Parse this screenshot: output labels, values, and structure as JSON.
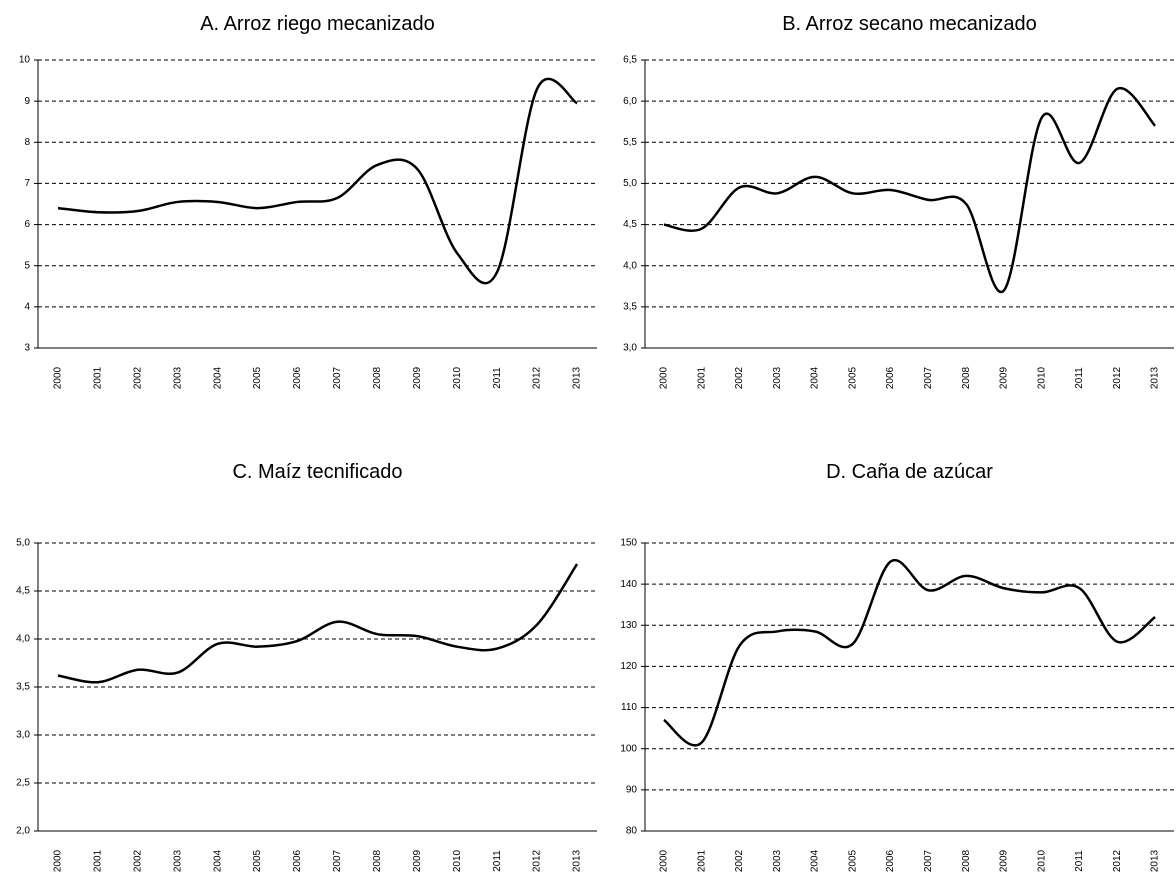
{
  "chart_data": [
    {
      "type": "line",
      "title": "A. Arroz riego mecanizado",
      "categories": [
        "2000",
        "2001",
        "2002",
        "2003",
        "2004",
        "2005",
        "2006",
        "2007",
        "2008",
        "2009",
        "2010",
        "2011",
        "2012",
        "2013"
      ],
      "values": [
        6.4,
        6.3,
        6.33,
        6.55,
        6.55,
        6.4,
        6.55,
        6.65,
        7.45,
        7.35,
        5.3,
        4.85,
        9.3,
        8.95
      ],
      "color": "#000000",
      "ylim": [
        3,
        10
      ],
      "yticks": [
        3,
        4,
        5,
        6,
        7,
        8,
        9,
        10
      ],
      "grid": true
    },
    {
      "type": "line",
      "title": "B. Arroz secano mecanizado",
      "categories": [
        "2000",
        "2001",
        "2002",
        "2003",
        "2004",
        "2005",
        "2006",
        "2007",
        "2008",
        "2009",
        "2010",
        "2011",
        "2012",
        "2013"
      ],
      "values": [
        4.5,
        4.45,
        4.95,
        4.88,
        5.08,
        4.88,
        4.92,
        4.8,
        4.75,
        3.7,
        5.8,
        5.25,
        6.15,
        5.7
      ],
      "color": "#000000",
      "ylim": [
        3,
        6.5
      ],
      "yticks": [
        {
          "value": 3,
          "label": "3,0"
        },
        {
          "value": 3.5,
          "label": "3,5"
        },
        {
          "value": 4,
          "label": "4,0"
        },
        {
          "value": 4.5,
          "label": "4,5"
        },
        {
          "value": 5,
          "label": "5,0"
        },
        {
          "value": 5.5,
          "label": "5,5"
        },
        {
          "value": 6,
          "label": "6,0"
        },
        {
          "value": 6.5,
          "label": "6,5"
        }
      ],
      "grid": true
    },
    {
      "type": "line",
      "title": "C. Maíz tecnificado",
      "categories": [
        "2000",
        "2001",
        "2002",
        "2003",
        "2004",
        "2005",
        "2006",
        "2007",
        "2008",
        "2009",
        "2010",
        "2011",
        "2012",
        "2013"
      ],
      "values": [
        3.62,
        3.55,
        3.68,
        3.65,
        3.95,
        3.92,
        3.98,
        4.18,
        4.05,
        4.03,
        3.92,
        3.9,
        4.15,
        4.78
      ],
      "color": "#000000",
      "ylim": [
        2,
        5
      ],
      "yticks": [
        {
          "value": 2,
          "label": "2,0"
        },
        {
          "value": 2.5,
          "label": "2,5"
        },
        {
          "value": 3,
          "label": "3,0"
        },
        {
          "value": 3.5,
          "label": "3,5"
        },
        {
          "value": 4,
          "label": "4,0"
        },
        {
          "value": 4.5,
          "label": "4,5"
        },
        {
          "value": 5,
          "label": "5,0"
        }
      ],
      "grid": true
    },
    {
      "type": "line",
      "title": "D. Caña de azúcar",
      "categories": [
        "2000",
        "2001",
        "2002",
        "2003",
        "2004",
        "2005",
        "2006",
        "2007",
        "2008",
        "2009",
        "2010",
        "2011",
        "2012",
        "2013"
      ],
      "values": [
        107,
        101.5,
        125,
        128.5,
        128.5,
        125.5,
        145.5,
        138.5,
        142,
        139,
        138,
        139,
        126,
        132
      ],
      "color": "#000000",
      "ylim": [
        80,
        150
      ],
      "yticks": [
        80,
        90,
        100,
        110,
        120,
        130,
        140,
        150
      ],
      "grid": true
    }
  ]
}
